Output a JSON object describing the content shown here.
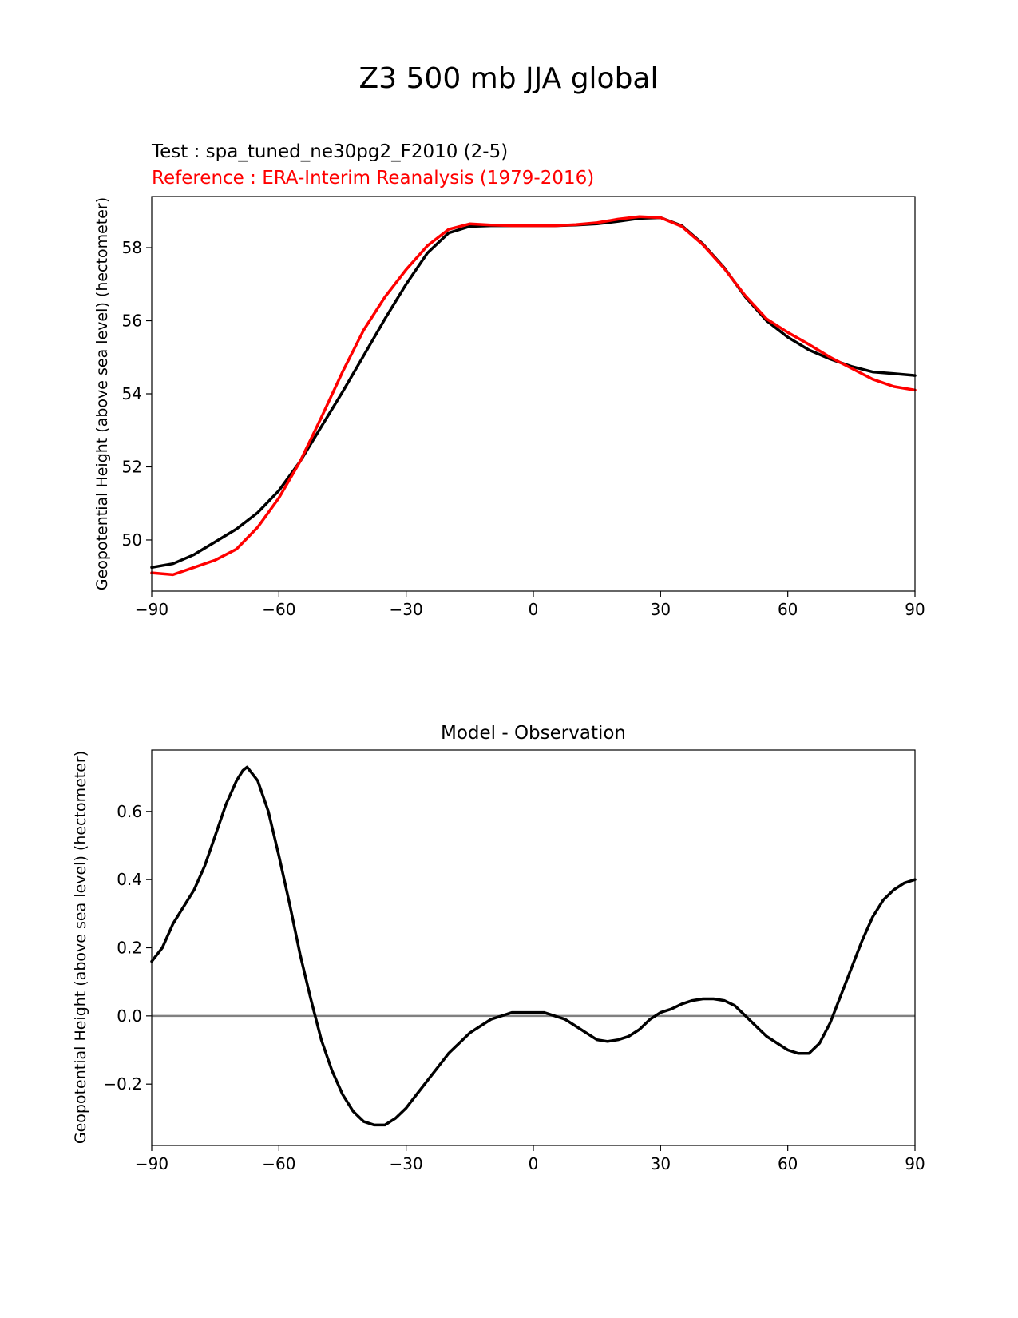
{
  "figure": {
    "suptitle": "Z3 500 mb JJA global",
    "test_label": "Test : spa_tuned_ne30pg2_F2010 (2-5)",
    "reference_label": "Reference : ERA-Interim Reanalysis (1979-2016)"
  },
  "colors": {
    "test": "#000000",
    "reference": "#ff0000",
    "zero_line": "#808080"
  },
  "chart_data": [
    {
      "type": "line",
      "title": "",
      "xlabel": "",
      "ylabel": "Geopotential Height (above sea level) (hectometer)",
      "xlim": [
        -90,
        90
      ],
      "ylim": [
        48.6,
        59.4
      ],
      "xticks": [
        -90,
        -60,
        -30,
        0,
        30,
        60,
        90
      ],
      "xtick_labels": [
        "−90",
        "−60",
        "−30",
        "0",
        "30",
        "60",
        "90"
      ],
      "yticks": [
        50,
        52,
        54,
        56,
        58
      ],
      "ytick_labels": [
        "50",
        "52",
        "54",
        "56",
        "58"
      ],
      "series": [
        {
          "name": "Test : spa_tuned_ne30pg2_F2010 (2-5)",
          "color": "#000000",
          "x": [
            -90,
            -85,
            -80,
            -75,
            -70,
            -65,
            -60,
            -55,
            -50,
            -45,
            -40,
            -35,
            -30,
            -25,
            -20,
            -15,
            -10,
            -5,
            0,
            5,
            10,
            15,
            20,
            25,
            30,
            35,
            40,
            45,
            50,
            55,
            60,
            65,
            70,
            75,
            80,
            85,
            90
          ],
          "y": [
            49.25,
            49.35,
            49.6,
            49.95,
            50.3,
            50.75,
            51.35,
            52.15,
            53.1,
            54.05,
            55.05,
            56.05,
            57.0,
            57.85,
            58.4,
            58.58,
            58.6,
            58.6,
            58.6,
            58.6,
            58.62,
            58.65,
            58.72,
            58.8,
            58.82,
            58.6,
            58.1,
            57.45,
            56.65,
            56.0,
            55.55,
            55.2,
            54.95,
            54.75,
            54.6,
            54.55,
            54.5
          ]
        },
        {
          "name": "Reference : ERA-Interim Reanalysis (1979-2016)",
          "color": "#ff0000",
          "x": [
            -90,
            -85,
            -80,
            -75,
            -70,
            -65,
            -60,
            -55,
            -50,
            -45,
            -40,
            -35,
            -30,
            -25,
            -20,
            -15,
            -10,
            -5,
            0,
            5,
            10,
            15,
            20,
            25,
            30,
            35,
            40,
            45,
            50,
            55,
            60,
            65,
            70,
            75,
            80,
            85,
            90
          ],
          "y": [
            49.1,
            49.05,
            49.25,
            49.45,
            49.75,
            50.35,
            51.15,
            52.15,
            53.35,
            54.6,
            55.75,
            56.65,
            57.4,
            58.05,
            58.5,
            58.65,
            58.62,
            58.6,
            58.6,
            58.6,
            58.63,
            58.68,
            58.78,
            58.85,
            58.82,
            58.58,
            58.08,
            57.43,
            56.68,
            56.05,
            55.68,
            55.35,
            55.0,
            54.7,
            54.4,
            54.2,
            54.1
          ]
        }
      ]
    },
    {
      "type": "line",
      "title": "Model - Observation",
      "xlabel": "",
      "ylabel": "Geopotential Height (above sea level) (hectometer)",
      "xlim": [
        -90,
        90
      ],
      "ylim": [
        -0.38,
        0.78
      ],
      "xticks": [
        -90,
        -60,
        -30,
        0,
        30,
        60,
        90
      ],
      "xtick_labels": [
        "−90",
        "−60",
        "−30",
        "0",
        "30",
        "60",
        "90"
      ],
      "yticks": [
        -0.2,
        0.0,
        0.2,
        0.4,
        0.6
      ],
      "ytick_labels": [
        "−0.2",
        "0.0",
        "0.2",
        "0.4",
        "0.6"
      ],
      "reference_line": 0.0,
      "series": [
        {
          "name": "",
          "color": "#000000",
          "x": [
            -90,
            -87.5,
            -85,
            -82.5,
            -80,
            -77.5,
            -75,
            -72.5,
            -70,
            -68.5,
            -67.5,
            -65,
            -62.5,
            -60,
            -57.5,
            -55,
            -52.5,
            -50,
            -47.5,
            -45,
            -42.5,
            -40,
            -37.5,
            -35,
            -32.5,
            -30,
            -27.5,
            -25,
            -22.5,
            -20,
            -17.5,
            -15,
            -12.5,
            -10,
            -7.5,
            -5,
            -2.5,
            0,
            2.5,
            5,
            7.5,
            10,
            12.5,
            15,
            17.5,
            20,
            22.5,
            25,
            27.5,
            30,
            32.5,
            35,
            37.5,
            40,
            42.5,
            45,
            47.5,
            50,
            52.5,
            55,
            57.5,
            60,
            62.5,
            65,
            67.5,
            70,
            72.5,
            75,
            77.5,
            80,
            82.5,
            85,
            87.5,
            90
          ],
          "y": [
            0.16,
            0.2,
            0.27,
            0.32,
            0.37,
            0.44,
            0.53,
            0.62,
            0.69,
            0.72,
            0.73,
            0.69,
            0.6,
            0.47,
            0.33,
            0.18,
            0.05,
            -0.07,
            -0.16,
            -0.23,
            -0.28,
            -0.31,
            -0.32,
            -0.32,
            -0.3,
            -0.27,
            -0.23,
            -0.19,
            -0.15,
            -0.11,
            -0.08,
            -0.05,
            -0.03,
            -0.01,
            0.0,
            0.01,
            0.01,
            0.01,
            0.01,
            0.0,
            -0.01,
            -0.03,
            -0.05,
            -0.07,
            -0.075,
            -0.07,
            -0.06,
            -0.04,
            -0.01,
            0.01,
            0.02,
            0.035,
            0.045,
            0.05,
            0.05,
            0.045,
            0.03,
            0.0,
            -0.03,
            -0.06,
            -0.08,
            -0.1,
            -0.11,
            -0.11,
            -0.08,
            -0.02,
            0.06,
            0.14,
            0.22,
            0.29,
            0.34,
            0.37,
            0.39,
            0.4
          ]
        }
      ]
    }
  ]
}
